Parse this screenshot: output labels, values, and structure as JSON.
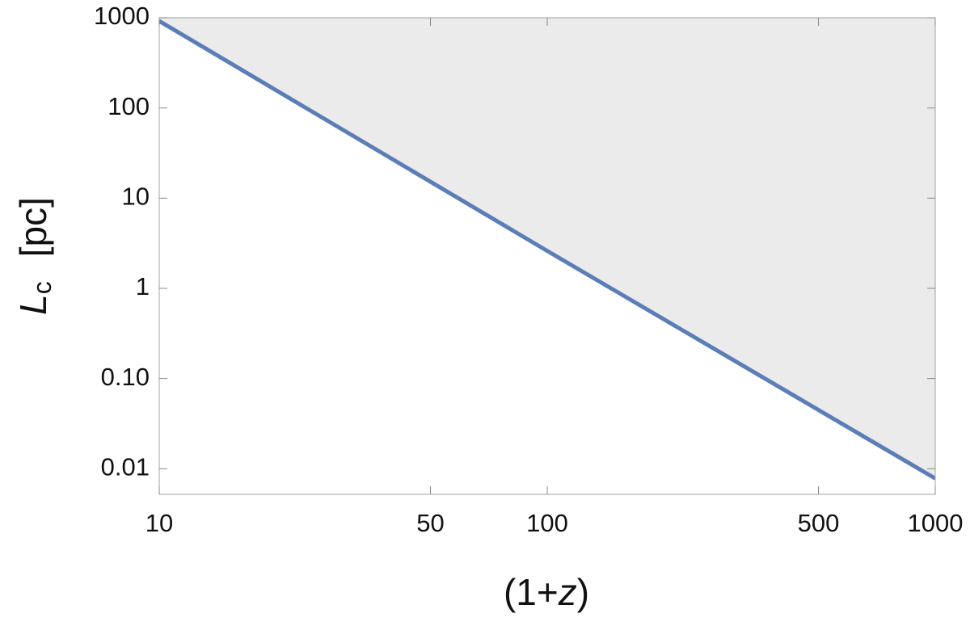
{
  "chart_data": {
    "type": "line",
    "xlabel": [
      "(1+",
      "z",
      ")"
    ],
    "ylabel": [
      "L",
      "c",
      "[pc]"
    ],
    "x": [
      10,
      100,
      1000
    ],
    "series": [
      {
        "color": "#5b7db8",
        "values": [
          920,
          2.6,
          0.0078
        ]
      }
    ],
    "fill_above": "#ebebeb",
    "xscale": "log",
    "yscale": "log",
    "xlim": [
      10,
      1000
    ],
    "ylim": [
      0.0052,
      1000
    ],
    "xticks": [
      10,
      50,
      100,
      500,
      1000
    ],
    "yticks": [
      1000,
      100,
      10,
      1,
      {
        "value": 0.1,
        "label": "0.10"
      },
      0.01
    ]
  }
}
